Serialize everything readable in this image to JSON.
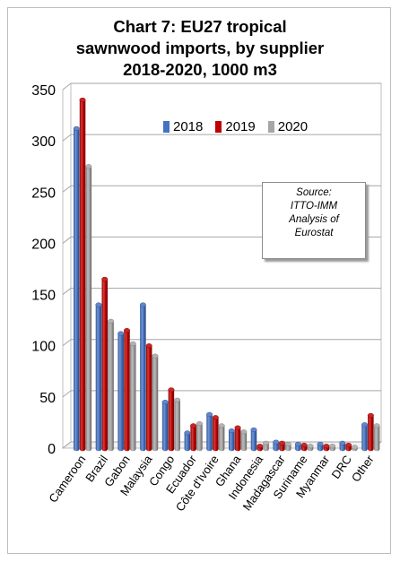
{
  "title_lines": [
    "Chart 7: EU27 tropical",
    "sawnwood imports, by supplier",
    "2018-2020, 1000 m3"
  ],
  "source_box": [
    "Source:",
    "ITTO-IMM",
    "Analysis of",
    "Eurostat"
  ],
  "colors": {
    "2018": "#4472c4",
    "2019": "#c00000",
    "2020": "#a6a6a6"
  },
  "chart_data": {
    "type": "bar",
    "title": "Chart 7: EU27 tropical sawnwood imports, by supplier 2018-2020, 1000 m3",
    "categories": [
      "Cameroon",
      "Brazil",
      "Gabon",
      "Malaysia",
      "Congo",
      "Ecuador",
      "Côte d'Ivoire",
      "Ghana",
      "Indonesia",
      "Madagascar",
      "Suriname",
      "Myanmar",
      "DRC",
      "Other"
    ],
    "series": [
      {
        "name": "2018",
        "values": [
          312,
          140,
          112,
          140,
          45,
          15,
          33,
          17,
          18,
          6,
          4,
          4,
          5,
          23
        ]
      },
      {
        "name": "2019",
        "values": [
          340,
          165,
          115,
          100,
          57,
          22,
          30,
          20,
          2,
          5,
          3,
          2,
          3,
          32
        ]
      },
      {
        "name": "2020",
        "values": [
          275,
          124,
          102,
          90,
          47,
          24,
          22,
          16,
          5,
          4,
          2,
          2,
          1,
          22
        ]
      }
    ],
    "yticks": [
      0,
      50,
      100,
      150,
      200,
      250,
      300,
      350
    ],
    "ylim": [
      0,
      350
    ],
    "grid": true,
    "legend_position": "top-right",
    "style": "3d-cylinder"
  }
}
